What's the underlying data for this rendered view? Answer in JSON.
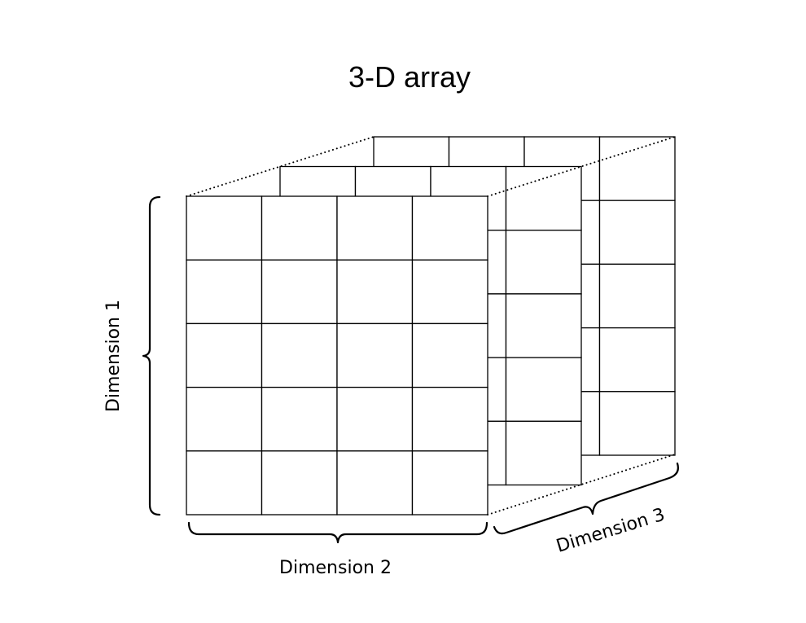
{
  "title": "3-D array",
  "labels": {
    "dimension1": "Dimension 1",
    "dimension2": "Dimension 2",
    "dimension3": "Dimension 3"
  },
  "grid": {
    "rows": 5,
    "columns": 4,
    "layers": 3
  },
  "colors": {
    "line": "#000000",
    "background": "#ffffff"
  }
}
